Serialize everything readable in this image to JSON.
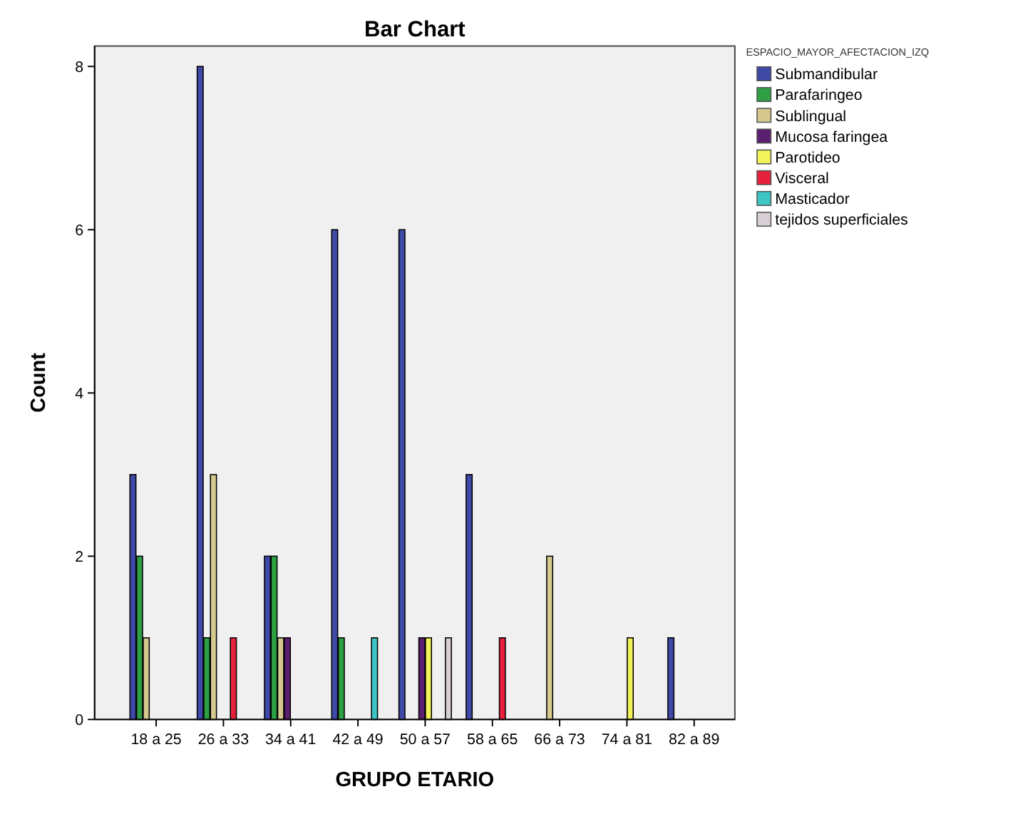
{
  "chart_data": {
    "type": "bar",
    "title": "Bar Chart",
    "xlabel": "GRUPO ETARIO",
    "ylabel": "Count",
    "legend_title": "ESPACIO_MAYOR_AFECTACION_IZQ",
    "categories": [
      "18 a 25",
      "26 a 33",
      "34 a 41",
      "42 a 49",
      "50 a 57",
      "58 a 65",
      "66 a 73",
      "74 a 81",
      "82 a 89"
    ],
    "series": [
      {
        "name": "Submandibular",
        "color": "#3e49a8",
        "values": [
          3,
          8,
          2,
          6,
          6,
          3,
          null,
          null,
          1
        ]
      },
      {
        "name": "Parafaringeo",
        "color": "#2ea043",
        "values": [
          2,
          1,
          2,
          1,
          null,
          null,
          null,
          null,
          null
        ]
      },
      {
        "name": "Sublingual",
        "color": "#d5c98f",
        "values": [
          1,
          3,
          1,
          null,
          null,
          null,
          2,
          null,
          null
        ]
      },
      {
        "name": "Mucosa faringea",
        "color": "#5a1f6e",
        "values": [
          null,
          null,
          1,
          null,
          1,
          null,
          null,
          null,
          null
        ]
      },
      {
        "name": "Parotideo",
        "color": "#f2f25a",
        "values": [
          null,
          null,
          null,
          null,
          1,
          null,
          null,
          1,
          null
        ]
      },
      {
        "name": "Visceral",
        "color": "#e8213a",
        "values": [
          null,
          1,
          null,
          null,
          null,
          1,
          null,
          null,
          null
        ]
      },
      {
        "name": "Masticador",
        "color": "#3ec6c6",
        "values": [
          null,
          null,
          null,
          1,
          null,
          null,
          null,
          null,
          null
        ]
      },
      {
        "name": "tejidos superficiales",
        "color": "#d7cfd6",
        "values": [
          null,
          null,
          null,
          null,
          1,
          null,
          null,
          null,
          null
        ]
      }
    ],
    "ylim": [
      0,
      8.25
    ],
    "yticks": [
      0,
      2,
      4,
      6,
      8
    ],
    "grid": false,
    "legend": "top right"
  }
}
